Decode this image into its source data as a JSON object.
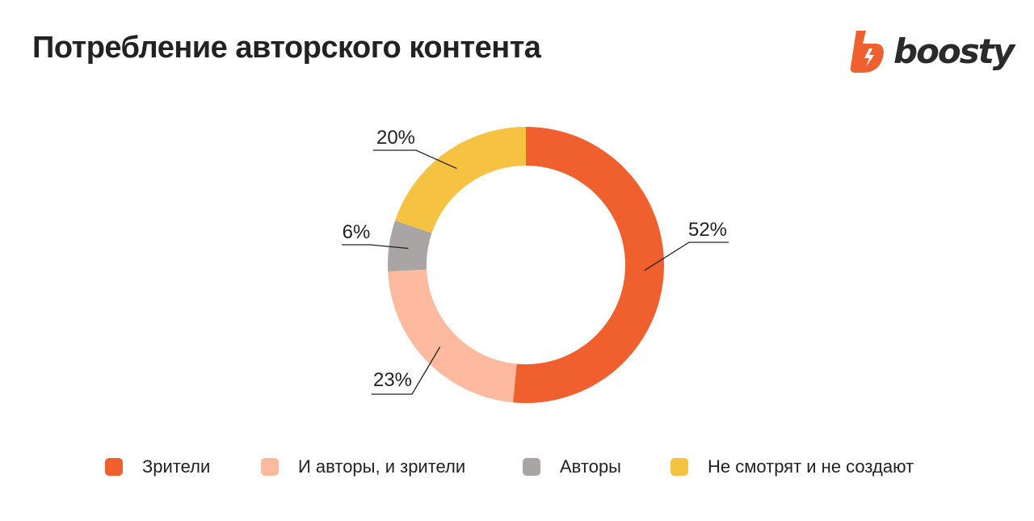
{
  "page": {
    "title": "Потребление авторского контента",
    "logo_text": "boosty",
    "logo_icon": "boosty-bolt-icon"
  },
  "colors": {
    "Зрители": "#F05F2E",
    "И авторы, и зрители": "#FDBA9F",
    "Авторы": "#A9A5A4",
    "Не смотрят и не создают": "#F5C242",
    "brand": "#F05F2E"
  },
  "chart_data": {
    "type": "pie",
    "donut": true,
    "categories": [
      "Зрители",
      "И авторы, и зрители",
      "Авторы",
      "Не смотрят и не создают"
    ],
    "values": [
      52,
      23,
      6,
      20
    ],
    "labels": [
      "52%",
      "23%",
      "6%",
      "20%"
    ],
    "legend_position": "bottom"
  },
  "legend": [
    {
      "label": "Зрители"
    },
    {
      "label": "И авторы, и зрители"
    },
    {
      "label": "Авторы"
    },
    {
      "label": "Не смотрят и не создают"
    }
  ]
}
